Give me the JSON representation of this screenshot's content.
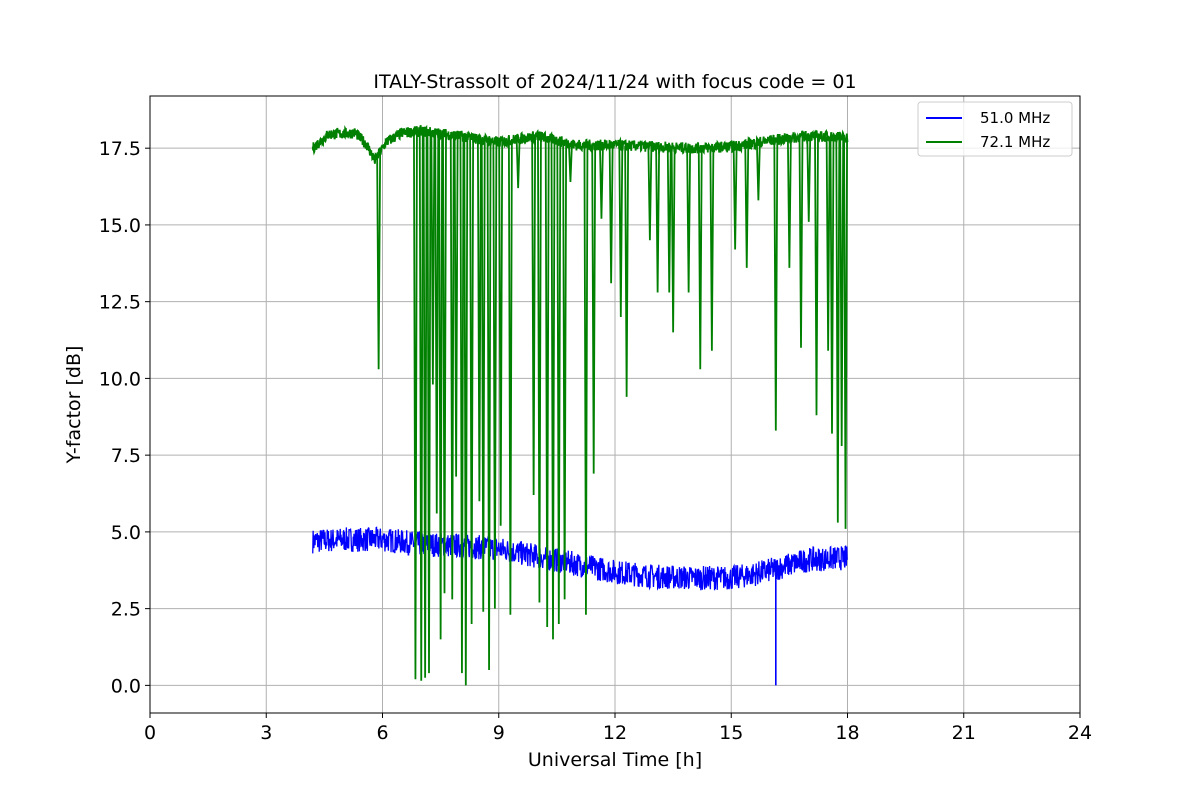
{
  "chart_data": {
    "type": "line",
    "title": "ITALY-Strassolt of 2024/11/24 with focus code = 01",
    "xlabel": "Universal Time [h]",
    "ylabel": "Y-factor [dB]",
    "xlim": [
      0,
      24
    ],
    "ylim": [
      -0.9,
      19.2
    ],
    "xticks": [
      0,
      3,
      6,
      9,
      12,
      15,
      18,
      21,
      24
    ],
    "yticks": [
      0.0,
      2.5,
      5.0,
      7.5,
      10.0,
      12.5,
      15.0,
      17.5
    ],
    "xtick_labels": [
      "0",
      "3",
      "6",
      "9",
      "12",
      "15",
      "18",
      "21",
      "24"
    ],
    "ytick_labels": [
      "0.0",
      "2.5",
      "5.0",
      "7.5",
      "10.0",
      "12.5",
      "15.0",
      "17.5"
    ],
    "grid": true,
    "legend_position": "top-right",
    "series": [
      {
        "name": "51.0 MHz",
        "color": "#0000ff",
        "band_center": [
          [
            4.2,
            4.7
          ],
          [
            5,
            4.75
          ],
          [
            6,
            4.75
          ],
          [
            7,
            4.6
          ],
          [
            8,
            4.55
          ],
          [
            9,
            4.45
          ],
          [
            10,
            4.2
          ],
          [
            11,
            3.95
          ],
          [
            12,
            3.7
          ],
          [
            13,
            3.55
          ],
          [
            14,
            3.5
          ],
          [
            15,
            3.5
          ],
          [
            15.5,
            3.6
          ],
          [
            16,
            3.75
          ],
          [
            17,
            4.1
          ],
          [
            18,
            4.15
          ]
        ],
        "band_halfwidth": 0.4,
        "spikes": [
          [
            16.15,
            0.0
          ]
        ]
      },
      {
        "name": "72.1 MHz",
        "color": "#008000",
        "baseline": [
          [
            4.2,
            17.5
          ],
          [
            4.6,
            17.95
          ],
          [
            5.3,
            18.0
          ],
          [
            5.6,
            17.6
          ],
          [
            5.8,
            17.1
          ],
          [
            6.1,
            17.7
          ],
          [
            6.5,
            18.0
          ],
          [
            7,
            18.05
          ],
          [
            8,
            17.9
          ],
          [
            9,
            17.7
          ],
          [
            10,
            17.9
          ],
          [
            11,
            17.6
          ],
          [
            12,
            17.6
          ],
          [
            13,
            17.55
          ],
          [
            14,
            17.5
          ],
          [
            15,
            17.55
          ],
          [
            16,
            17.75
          ],
          [
            17,
            17.9
          ],
          [
            18,
            17.85
          ]
        ],
        "dips": [
          [
            5.9,
            10.3
          ],
          [
            6.85,
            0.2
          ],
          [
            7.0,
            0.15
          ],
          [
            7.1,
            0.25
          ],
          [
            7.2,
            0.4
          ],
          [
            7.3,
            9.8
          ],
          [
            7.4,
            5.6
          ],
          [
            7.5,
            1.5
          ],
          [
            7.6,
            3.0
          ],
          [
            7.8,
            2.8
          ],
          [
            7.9,
            6.8
          ],
          [
            8.05,
            0.4
          ],
          [
            8.15,
            0.0
          ],
          [
            8.3,
            2.0
          ],
          [
            8.5,
            6.0
          ],
          [
            8.6,
            2.4
          ],
          [
            8.75,
            0.5
          ],
          [
            8.9,
            2.5
          ],
          [
            9.05,
            5.2
          ],
          [
            9.3,
            2.3
          ],
          [
            9.5,
            16.2
          ],
          [
            9.9,
            6.2
          ],
          [
            10.05,
            2.7
          ],
          [
            10.25,
            1.9
          ],
          [
            10.4,
            1.5
          ],
          [
            10.55,
            2.0
          ],
          [
            10.7,
            2.8
          ],
          [
            10.85,
            16.4
          ],
          [
            11.25,
            2.3
          ],
          [
            11.45,
            6.9
          ],
          [
            11.65,
            15.2
          ],
          [
            11.9,
            13.1
          ],
          [
            12.15,
            12.0
          ],
          [
            12.3,
            9.4
          ],
          [
            12.9,
            14.5
          ],
          [
            13.1,
            12.8
          ],
          [
            13.4,
            12.8
          ],
          [
            13.5,
            11.5
          ],
          [
            13.9,
            12.8
          ],
          [
            14.2,
            10.3
          ],
          [
            14.5,
            10.9
          ],
          [
            15.1,
            14.2
          ],
          [
            15.4,
            13.6
          ],
          [
            15.7,
            15.8
          ],
          [
            16.15,
            8.3
          ],
          [
            16.5,
            13.6
          ],
          [
            16.8,
            11.0
          ],
          [
            17.0,
            15.1
          ],
          [
            17.2,
            8.8
          ],
          [
            17.5,
            10.9
          ],
          [
            17.6,
            8.2
          ],
          [
            17.75,
            5.3
          ],
          [
            17.85,
            7.8
          ],
          [
            17.95,
            5.1
          ]
        ]
      }
    ]
  }
}
